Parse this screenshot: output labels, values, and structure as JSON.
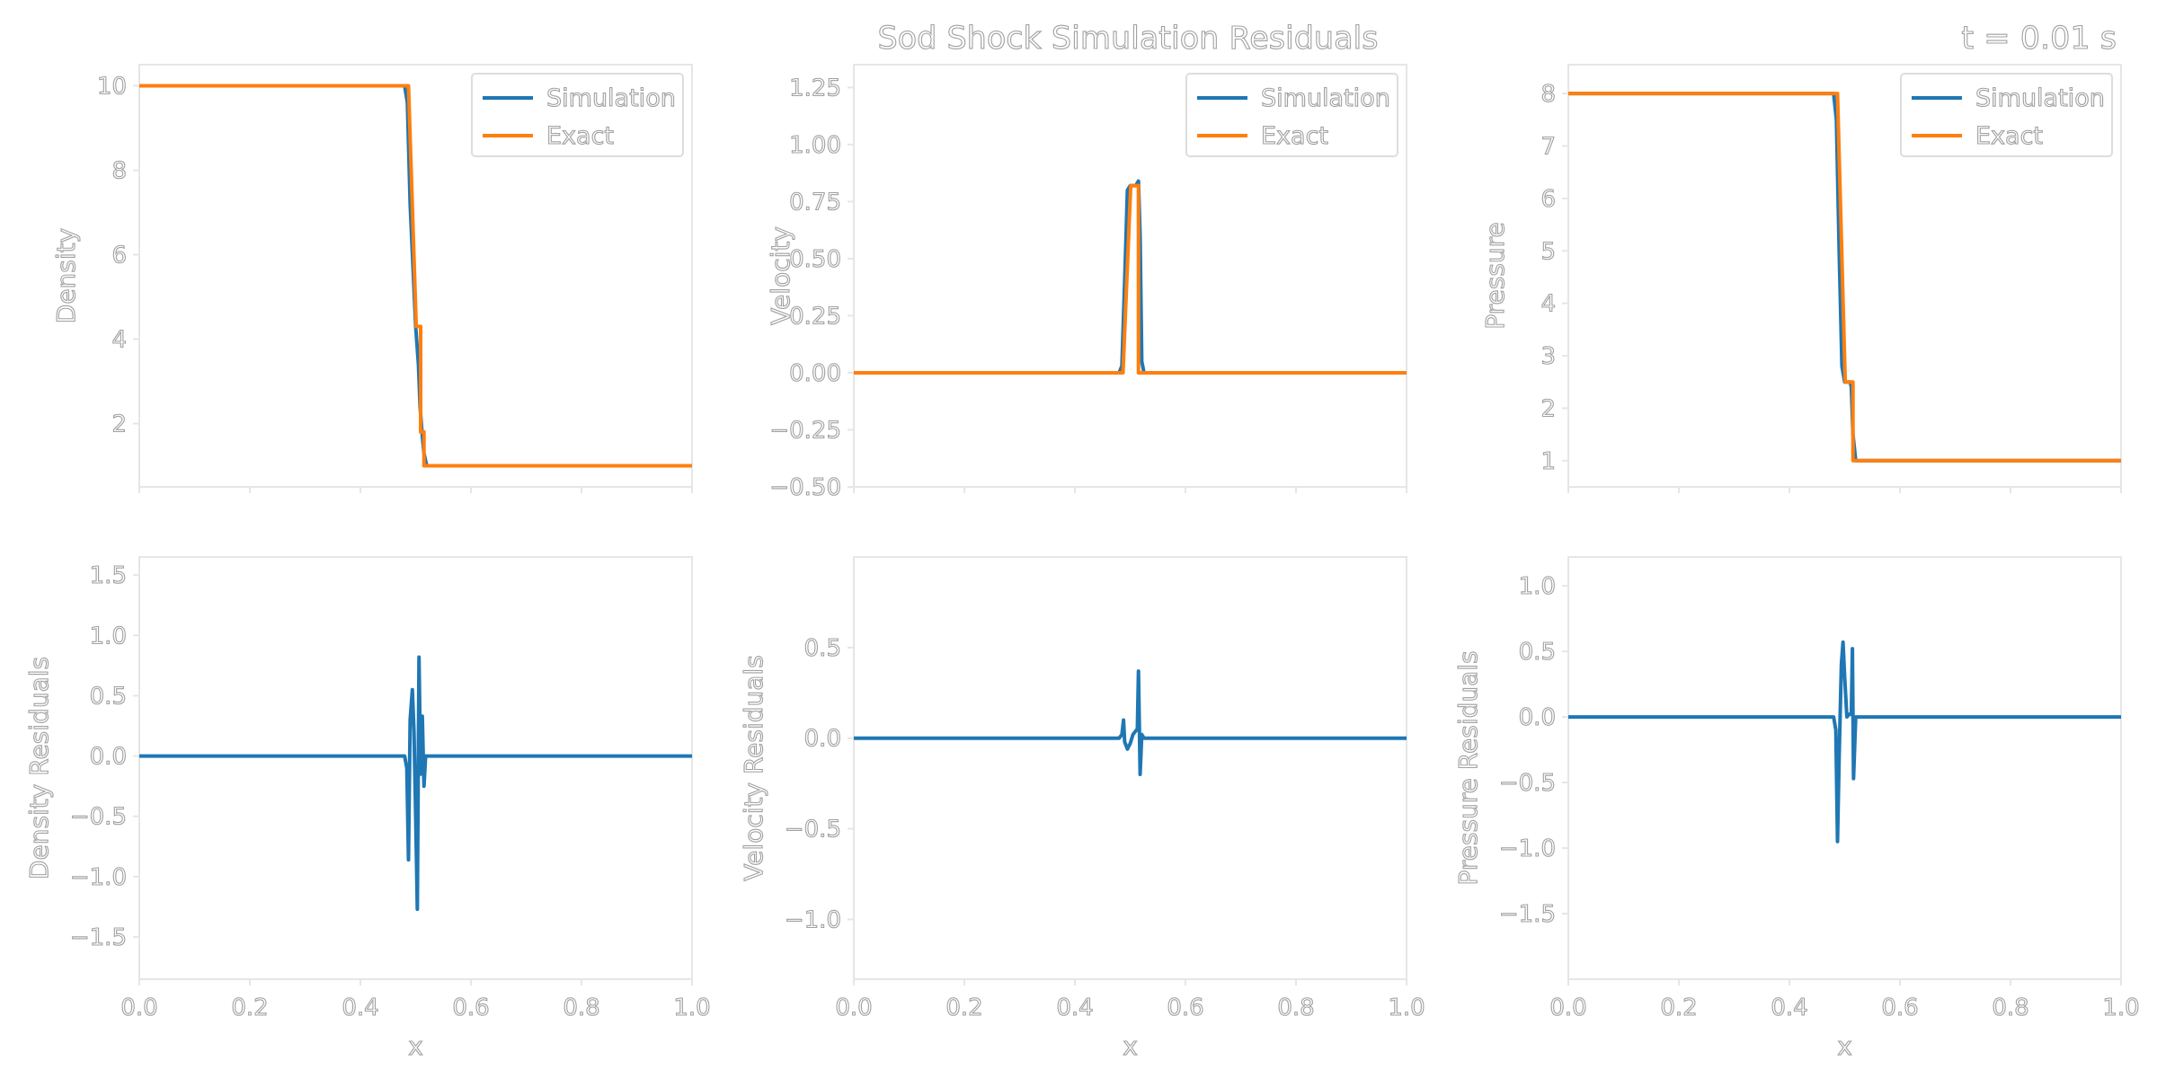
{
  "figure": {
    "title": "Sod Shock Simulation Residuals",
    "time_label": "t = 0.01 s",
    "colors": {
      "simulation": "#1f77b4",
      "exact": "#ff7f0e",
      "frame": "#e6e6e6",
      "text_outline": "#a0a0a0"
    }
  },
  "chart_data": [
    {
      "type": "line",
      "ylabel": "Density",
      "xlim": [
        0,
        1
      ],
      "ylim": [
        0.5,
        10.5
      ],
      "yticks": [
        2,
        4,
        6,
        8,
        10
      ],
      "ytick_labels": [
        "2",
        "4",
        "6",
        "8",
        "10"
      ],
      "legend": "top-right",
      "grid": false,
      "series": [
        {
          "name": "Simulation",
          "color": "#1f77b4",
          "x": [
            0,
            0.48,
            0.485,
            0.49,
            0.5,
            0.505,
            0.508,
            0.512,
            0.515,
            0.52,
            1.0
          ],
          "y": [
            10,
            10,
            9.6,
            7.2,
            4.3,
            3.4,
            2.4,
            1.7,
            1.3,
            1.0,
            1.0
          ]
        },
        {
          "name": "Exact",
          "color": "#ff7f0e",
          "x": [
            0,
            0.487,
            0.501,
            0.501,
            0.509,
            0.509,
            0.515,
            0.515,
            1.0
          ],
          "y": [
            10,
            10,
            4.3,
            4.3,
            4.3,
            1.8,
            1.8,
            1.0,
            1.0
          ]
        }
      ]
    },
    {
      "type": "line",
      "ylabel": "Velocity",
      "xlim": [
        0,
        1
      ],
      "ylim": [
        -0.5,
        1.35
      ],
      "yticks": [
        -0.5,
        -0.25,
        0,
        0.25,
        0.5,
        0.75,
        1.0,
        1.25
      ],
      "ytick_labels": [
        "−0.50",
        "−0.25",
        "0.00",
        "0.25",
        "0.50",
        "0.75",
        "1.00",
        "1.25"
      ],
      "legend": "top-right",
      "grid": false,
      "series": [
        {
          "name": "Simulation",
          "color": "#1f77b4",
          "x": [
            0,
            0.48,
            0.485,
            0.49,
            0.495,
            0.5,
            0.51,
            0.515,
            0.518,
            0.521,
            0.525,
            1.0
          ],
          "y": [
            0,
            0,
            0.03,
            0.4,
            0.8,
            0.82,
            0.82,
            0.84,
            0.6,
            0.05,
            0,
            0
          ]
        },
        {
          "name": "Exact",
          "color": "#ff7f0e",
          "x": [
            0,
            0.487,
            0.501,
            0.515,
            0.515,
            1.0
          ],
          "y": [
            0,
            0,
            0.82,
            0.82,
            0,
            0
          ]
        }
      ]
    },
    {
      "type": "line",
      "ylabel": "Pressure",
      "xlim": [
        0,
        1
      ],
      "ylim": [
        0.5,
        8.55
      ],
      "yticks": [
        1,
        2,
        3,
        4,
        5,
        6,
        7,
        8
      ],
      "ytick_labels": [
        "1",
        "2",
        "3",
        "4",
        "5",
        "6",
        "7",
        "8"
      ],
      "legend": "top-right",
      "grid": false,
      "series": [
        {
          "name": "Simulation",
          "color": "#1f77b4",
          "x": [
            0,
            0.48,
            0.485,
            0.49,
            0.495,
            0.5,
            0.51,
            0.512,
            0.515,
            0.52,
            1.0
          ],
          "y": [
            8,
            8,
            7.5,
            5.0,
            2.8,
            2.5,
            2.5,
            2.4,
            1.5,
            1.0,
            1.0
          ]
        },
        {
          "name": "Exact",
          "color": "#ff7f0e",
          "x": [
            0,
            0.487,
            0.501,
            0.515,
            0.515,
            1.0
          ],
          "y": [
            8,
            8,
            2.5,
            2.5,
            1.0,
            1.0
          ]
        }
      ]
    },
    {
      "type": "line",
      "xlabel": "x",
      "ylabel": "Density Residuals",
      "xlim": [
        0,
        1
      ],
      "ylim": [
        -1.85,
        1.65
      ],
      "xticks": [
        0,
        0.2,
        0.4,
        0.6,
        0.8,
        1.0
      ],
      "xtick_labels": [
        "0.0",
        "0.2",
        "0.4",
        "0.6",
        "0.8",
        "1.0"
      ],
      "yticks": [
        -1.5,
        -1.0,
        -0.5,
        0,
        0.5,
        1.0,
        1.5
      ],
      "ytick_labels": [
        "−1.5",
        "−1.0",
        "−0.5",
        "0.0",
        "0.5",
        "1.0",
        "1.5"
      ],
      "grid": false,
      "series": [
        {
          "color": "#1f77b4",
          "x": [
            0,
            0.48,
            0.484,
            0.487,
            0.49,
            0.494,
            0.497,
            0.5,
            0.503,
            0.506,
            0.509,
            0.512,
            0.515,
            0.518,
            0.52,
            1.0
          ],
          "y": [
            0,
            0,
            -0.1,
            -0.86,
            0.3,
            0.55,
            0.2,
            -0.5,
            -1.27,
            0.82,
            -0.15,
            0.33,
            -0.25,
            0,
            0,
            0
          ]
        }
      ]
    },
    {
      "type": "line",
      "xlabel": "x",
      "ylabel": "Velocity Residuals",
      "xlim": [
        0,
        1
      ],
      "ylim": [
        -1.33,
        1.0
      ],
      "xticks": [
        0,
        0.2,
        0.4,
        0.6,
        0.8,
        1.0
      ],
      "xtick_labels": [
        "0.0",
        "0.2",
        "0.4",
        "0.6",
        "0.8",
        "1.0"
      ],
      "yticks": [
        -1.0,
        -0.5,
        0,
        0.5
      ],
      "ytick_labels": [
        "−1.0",
        "−0.5",
        "0.0",
        "0.5"
      ],
      "grid": false,
      "series": [
        {
          "color": "#1f77b4",
          "x": [
            0,
            0.48,
            0.485,
            0.488,
            0.49,
            0.495,
            0.5,
            0.505,
            0.51,
            0.513,
            0.515,
            0.518,
            0.521,
            0.525,
            1.0
          ],
          "y": [
            0,
            0,
            0.02,
            0.1,
            -0.02,
            -0.06,
            -0.03,
            0.02,
            0.04,
            0.05,
            0.37,
            -0.2,
            0.02,
            0,
            0
          ]
        }
      ]
    },
    {
      "type": "line",
      "xlabel": "x",
      "ylabel": "Pressure Residuals",
      "xlim": [
        0,
        1
      ],
      "ylim": [
        -2.0,
        1.22
      ],
      "xticks": [
        0,
        0.2,
        0.4,
        0.6,
        0.8,
        1.0
      ],
      "xtick_labels": [
        "0.0",
        "0.2",
        "0.4",
        "0.6",
        "0.8",
        "1.0"
      ],
      "yticks": [
        -1.5,
        -1.0,
        -0.5,
        0,
        0.5,
        1.0
      ],
      "ytick_labels": [
        "−1.5",
        "−1.0",
        "−0.5",
        "0.0",
        "0.5",
        "1.0"
      ],
      "grid": false,
      "series": [
        {
          "color": "#1f77b4",
          "x": [
            0,
            0.48,
            0.484,
            0.487,
            0.49,
            0.494,
            0.497,
            0.5,
            0.504,
            0.508,
            0.512,
            0.514,
            0.516,
            0.52,
            1.0
          ],
          "y": [
            0,
            0,
            -0.1,
            -0.95,
            -0.3,
            0.4,
            0.57,
            0.3,
            0,
            0.02,
            0.02,
            0.52,
            -0.47,
            0,
            0
          ]
        }
      ]
    }
  ]
}
